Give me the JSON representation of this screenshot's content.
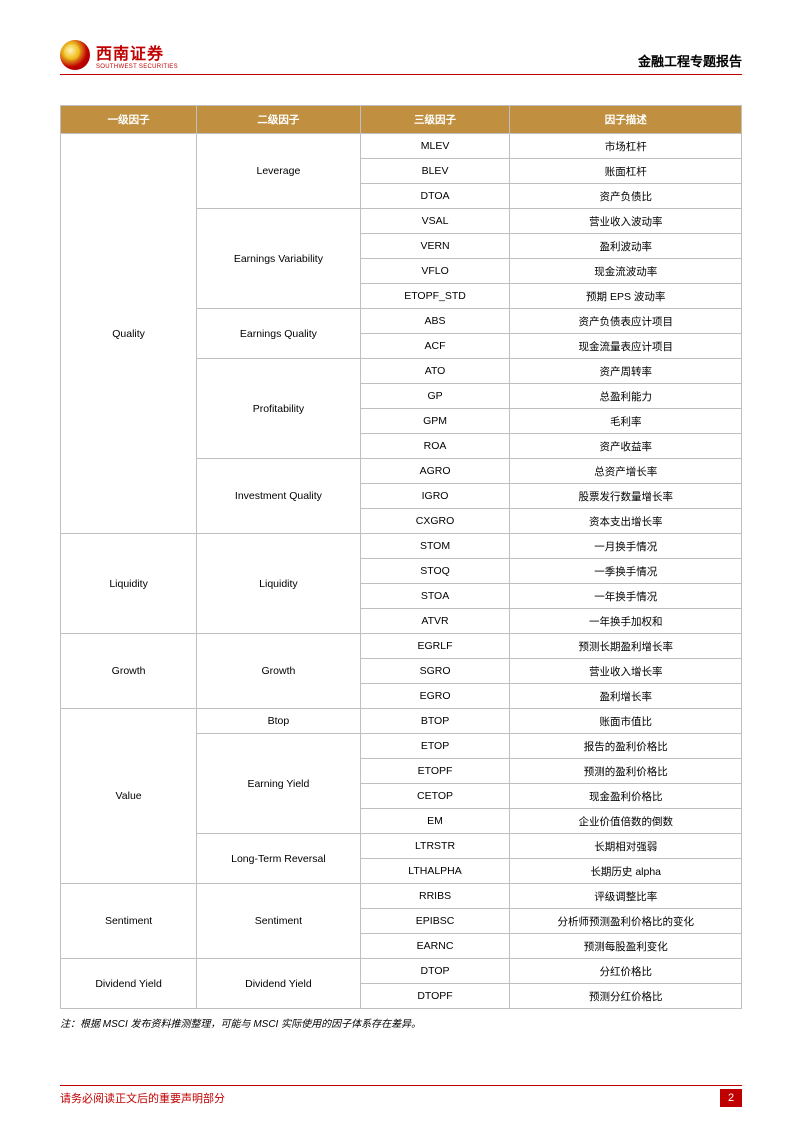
{
  "header": {
    "logo_cn": "西南证券",
    "logo_en": "SOUTHWEST SECURITIES",
    "report_title": "金融工程专题报告"
  },
  "table": {
    "headers": {
      "col1": "一级因子",
      "col2": "二级因子",
      "col3": "三级因子",
      "col4": "因子描述"
    },
    "rows": [
      {
        "l1": "Quality",
        "l1_span": 16,
        "l2": "Leverage",
        "l2_span": 3,
        "l3": "MLEV",
        "desc": "市场杠杆"
      },
      {
        "l3": "BLEV",
        "desc": "账面杠杆"
      },
      {
        "l3": "DTOA",
        "desc": "资产负债比"
      },
      {
        "l2": "Earnings Variability",
        "l2_span": 4,
        "l3": "VSAL",
        "desc": "营业收入波动率"
      },
      {
        "l3": "VERN",
        "desc": "盈利波动率"
      },
      {
        "l3": "VFLO",
        "desc": "现金流波动率"
      },
      {
        "l3": "ETOPF_STD",
        "desc": "预期 EPS 波动率"
      },
      {
        "l2": "Earnings Quality",
        "l2_span": 2,
        "l3": "ABS",
        "desc": "资产负债表应计项目"
      },
      {
        "l3": "ACF",
        "desc": "现金流量表应计项目"
      },
      {
        "l2": "Profitability",
        "l2_span": 4,
        "l3": "ATO",
        "desc": "资产周转率"
      },
      {
        "l3": "GP",
        "desc": "总盈利能力"
      },
      {
        "l3": "GPM",
        "desc": "毛利率"
      },
      {
        "l3": "ROA",
        "desc": "资产收益率"
      },
      {
        "l2": "Investment Quality",
        "l2_span": 3,
        "l3": "AGRO",
        "desc": "总资产增长率"
      },
      {
        "l3": "IGRO",
        "desc": "股票发行数量增长率"
      },
      {
        "l3": "CXGRO",
        "desc": "资本支出增长率"
      },
      {
        "l1": "Liquidity",
        "l1_span": 4,
        "l2": "Liquidity",
        "l2_span": 4,
        "l3": "STOM",
        "desc": "一月换手情况"
      },
      {
        "l3": "STOQ",
        "desc": "一季换手情况"
      },
      {
        "l3": "STOA",
        "desc": "一年换手情况"
      },
      {
        "l3": "ATVR",
        "desc": "一年换手加权和"
      },
      {
        "l1": "Growth",
        "l1_span": 3,
        "l2": "Growth",
        "l2_span": 3,
        "l3": "EGRLF",
        "desc": "预测长期盈利增长率"
      },
      {
        "l3": "SGRO",
        "desc": "营业收入增长率"
      },
      {
        "l3": "EGRO",
        "desc": "盈利增长率"
      },
      {
        "l1": "Value",
        "l1_span": 7,
        "l2": "Btop",
        "l2_span": 1,
        "l3": "BTOP",
        "desc": "账面市值比"
      },
      {
        "l2": "Earning Yield",
        "l2_span": 4,
        "l3": "ETOP",
        "desc": "报告的盈利价格比"
      },
      {
        "l3": "ETOPF",
        "desc": "预测的盈利价格比"
      },
      {
        "l3": "CETOP",
        "desc": "现金盈利价格比"
      },
      {
        "l3": "EM",
        "desc": "企业价值倍数的倒数"
      },
      {
        "l2": "Long-Term Reversal",
        "l2_span": 2,
        "l3": "LTRSTR",
        "desc": "长期相对强弱"
      },
      {
        "l3": "LTHALPHA",
        "desc": "长期历史 alpha"
      },
      {
        "l1": "Sentiment",
        "l1_span": 3,
        "l2": "Sentiment",
        "l2_span": 3,
        "l3": "RRIBS",
        "desc": "评级调整比率"
      },
      {
        "l3": "EPIBSC",
        "desc": "分析师预测盈利价格比的变化"
      },
      {
        "l3": "EARNC",
        "desc": "预测每股盈利变化"
      },
      {
        "l1": "Dividend Yield",
        "l1_span": 2,
        "l2": "Dividend Yield",
        "l2_span": 2,
        "l3": "DTOP",
        "desc": "分红价格比"
      },
      {
        "l3": "DTOPF",
        "desc": "预测分红价格比"
      }
    ]
  },
  "note": "注：根据 MSCI 发布资料推测整理，可能与 MSCI 实际使用的因子体系存在差异。",
  "footer": {
    "text": "请务必阅读正文后的重要声明部分",
    "page": "2"
  }
}
